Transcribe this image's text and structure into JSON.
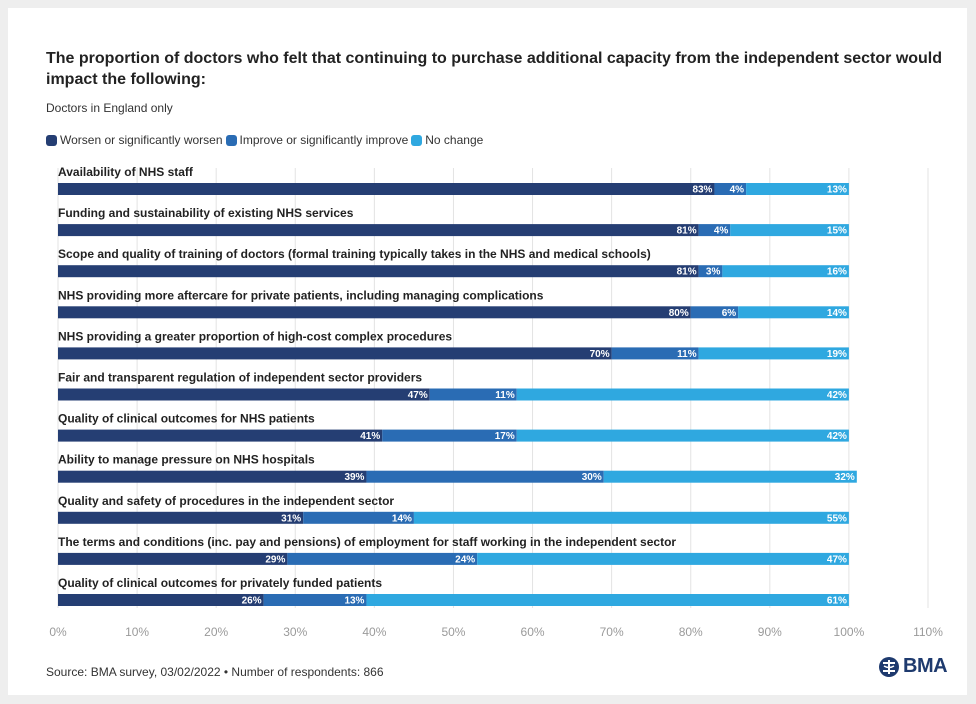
{
  "chart_data": {
    "type": "bar",
    "orientation": "horizontal",
    "stacked": true,
    "title": "The proportion of doctors who felt that continuing to purchase additional capacity from the independent sector would impact the following:",
    "subtitle": "Doctors in England only",
    "categories": [
      "Availability of NHS staff",
      "Funding and sustainability of existing NHS services",
      "Scope and quality of training of doctors (formal training typically takes in the NHS and medical schools)",
      "NHS providing more aftercare for private patients, including managing complications",
      "NHS providing a greater proportion of high-cost complex procedures",
      "Fair and transparent regulation of independent sector providers",
      "Quality of clinical outcomes for NHS patients",
      "Ability to manage pressure on NHS hospitals",
      "Quality and safety of procedures in the independent sector",
      "The terms and conditions (inc. pay and pensions) of employment for staff working in the independent sector",
      "Quality of clinical outcomes for privately funded patients"
    ],
    "series": [
      {
        "name": "Worsen or significantly worsen",
        "color": "#253e73",
        "values": [
          83,
          81,
          81,
          80,
          70,
          47,
          41,
          39,
          31,
          29,
          26
        ]
      },
      {
        "name": "Improve or significantly improve",
        "color": "#2a6cb4",
        "values": [
          4,
          4,
          3,
          6,
          11,
          11,
          17,
          30,
          14,
          24,
          13
        ]
      },
      {
        "name": "No change",
        "color": "#2fa8e0",
        "values": [
          13,
          15,
          16,
          14,
          19,
          42,
          42,
          32,
          55,
          47,
          61
        ]
      }
    ],
    "data_labels": [
      [
        "83%",
        "4%",
        "13%"
      ],
      [
        "81%",
        "4%",
        "15%"
      ],
      [
        "81%",
        "3%",
        "16%"
      ],
      [
        "80%",
        "6%",
        "14%"
      ],
      [
        "70%",
        "11%",
        "19%"
      ],
      [
        "47%",
        "11%",
        "42%"
      ],
      [
        "41%",
        "17%",
        "42%"
      ],
      [
        "39%",
        "30%",
        "32%"
      ],
      [
        "31%",
        "14%",
        "55%"
      ],
      [
        "29%",
        "24%",
        "47%"
      ],
      [
        "26%",
        "13%",
        "61%"
      ]
    ],
    "x_ticks": [
      "0%",
      "10%",
      "20%",
      "30%",
      "40%",
      "50%",
      "60%",
      "70%",
      "80%",
      "90%",
      "100%",
      "110%"
    ],
    "xlim": [
      0,
      110
    ],
    "grid": true,
    "legend_position": "top-left"
  },
  "footer": {
    "source": "Source: BMA survey, 03/02/2022 • Number of respondents: 866",
    "logo_text": "BMA"
  }
}
